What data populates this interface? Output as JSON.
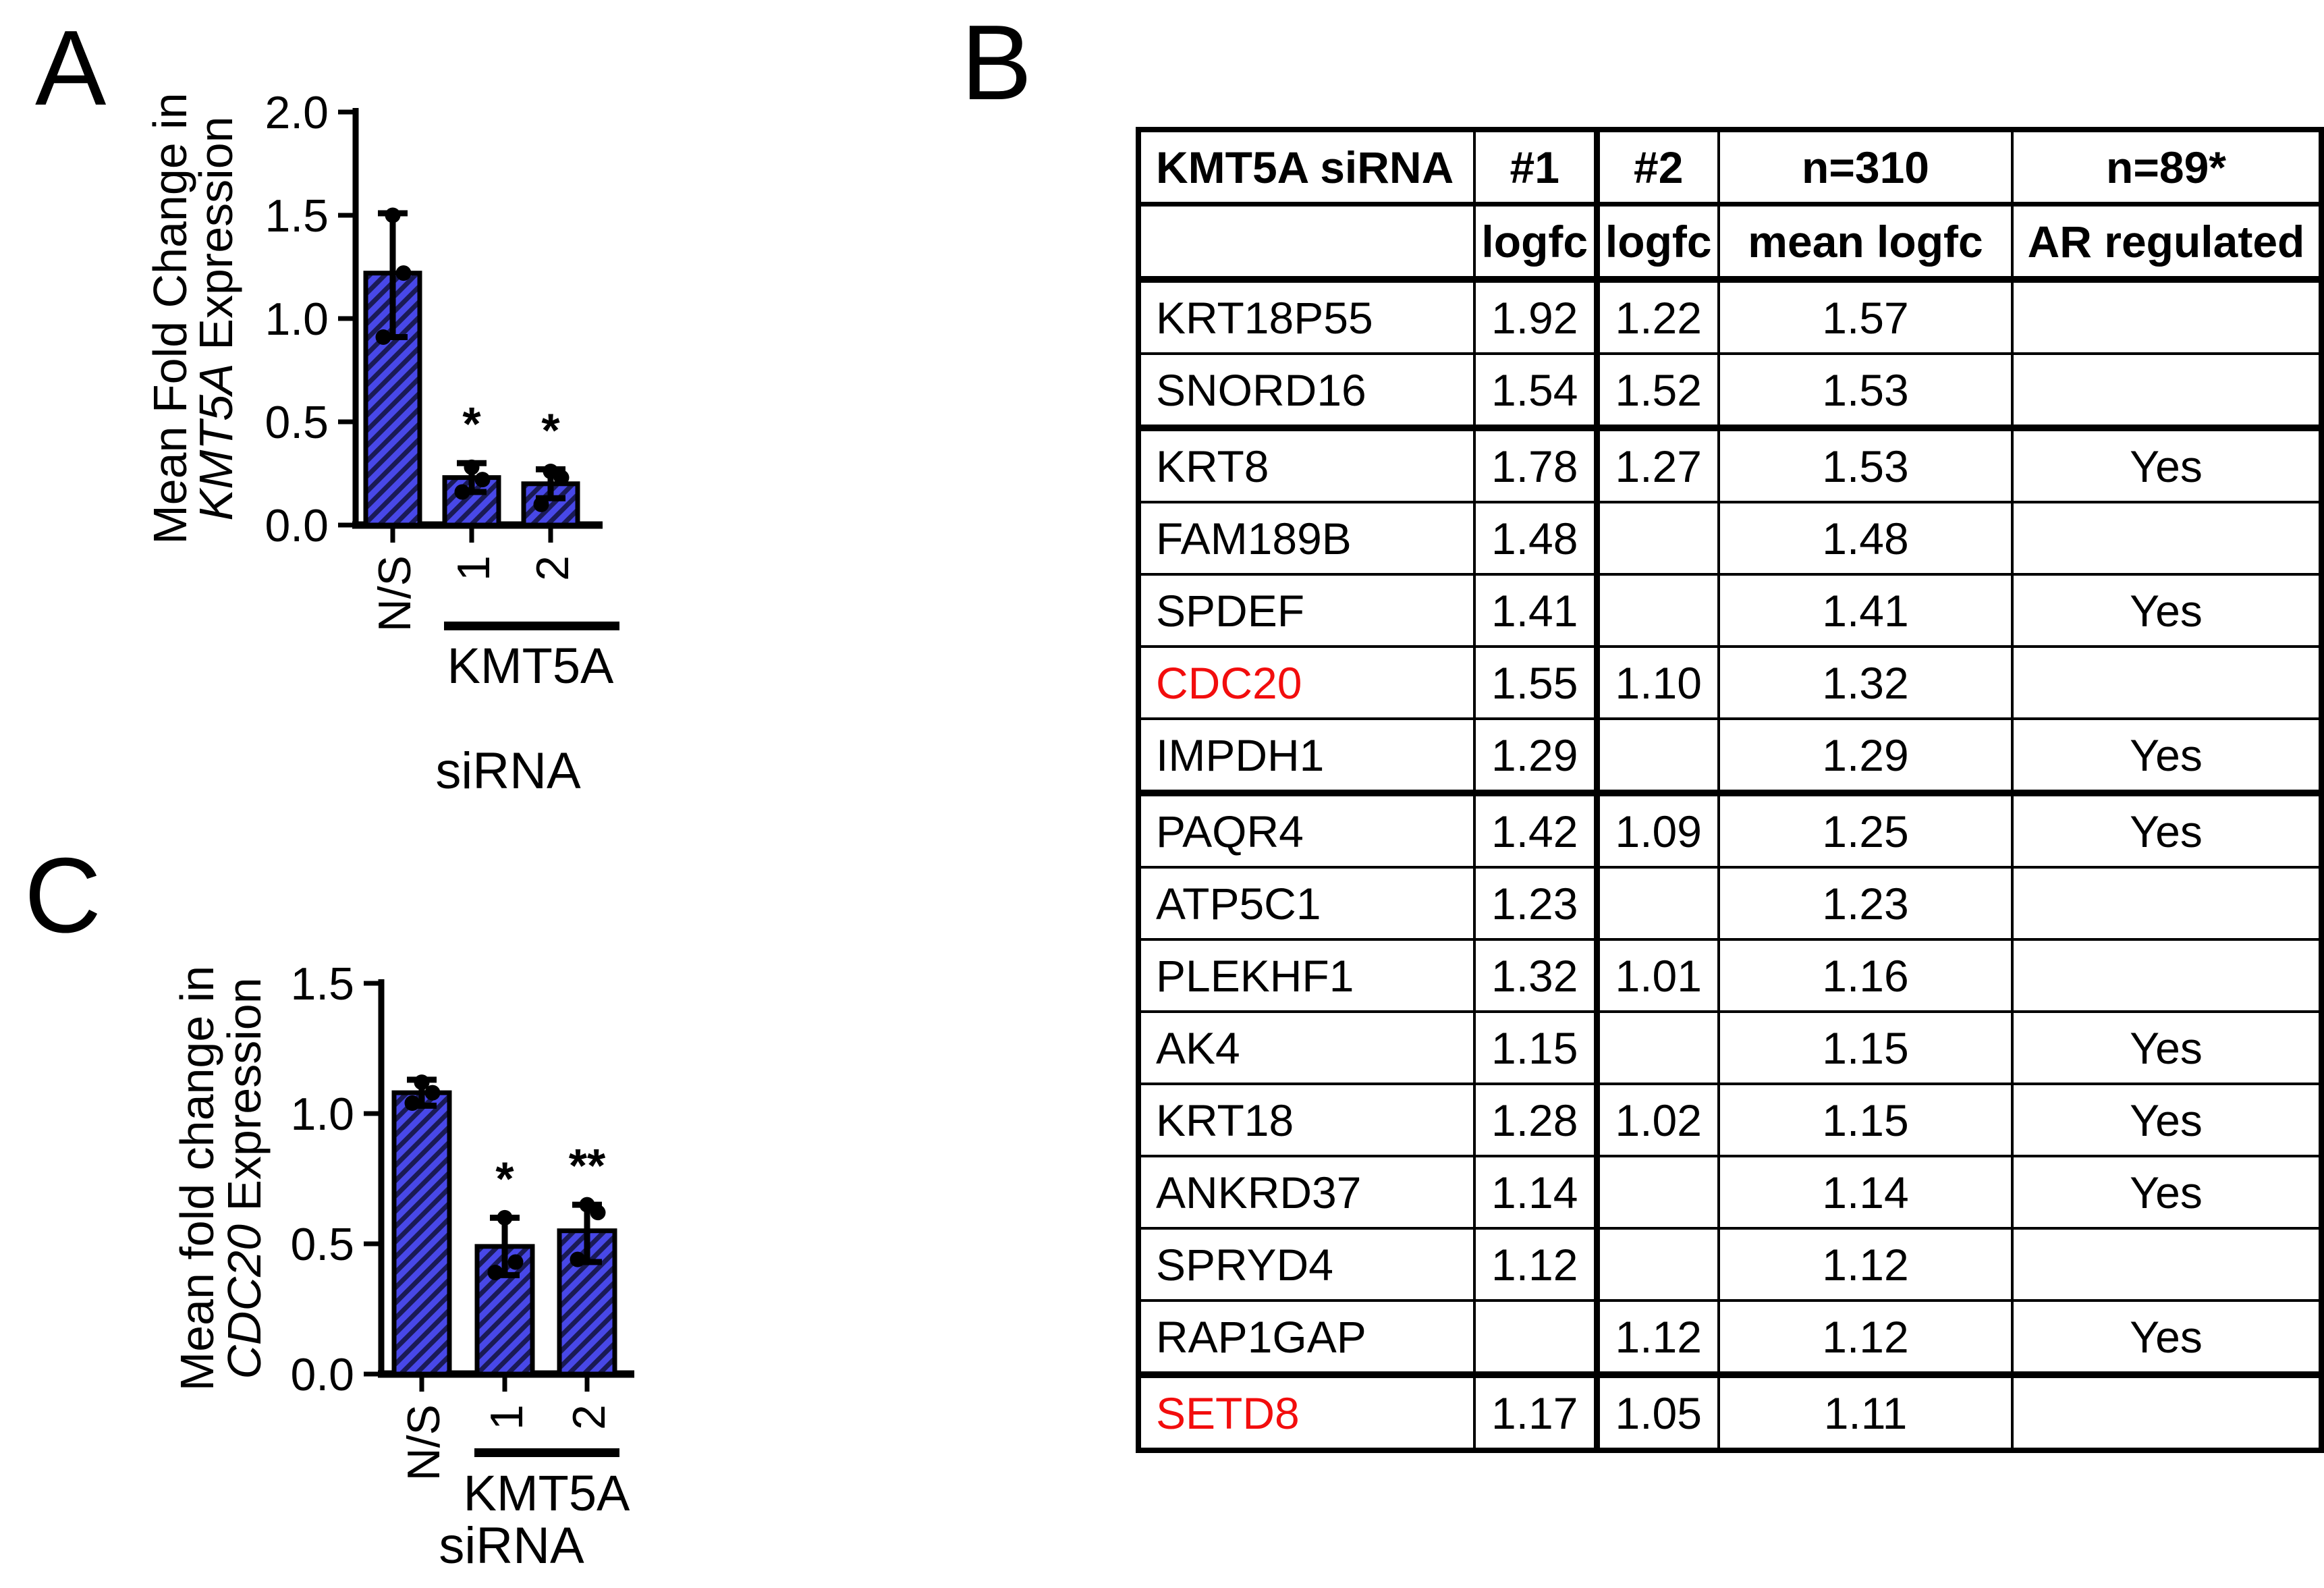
{
  "panel_labels": {
    "a": "A",
    "b": "B",
    "c": "C"
  },
  "colors": {
    "bar_fill": "#4848E8",
    "bar_hatch": "#1A1A55",
    "outline": "#000000",
    "red_text": "#F20D0D"
  },
  "chart_data": [
    {
      "id": "kmt5a",
      "panel": "A",
      "type": "bar",
      "title": "",
      "ylabel_line1": "Mean Fold Change in",
      "ylabel_gene": "KMT5A",
      "ylabel_suffix": " Expression",
      "xlabel": "siRNA",
      "group_label": "KMT5A",
      "categories": [
        "N/S",
        "1",
        "2"
      ],
      "values": [
        1.22,
        0.23,
        0.2
      ],
      "error_low": [
        0.91,
        0.16,
        0.13
      ],
      "error_high": [
        1.51,
        0.3,
        0.27
      ],
      "points": [
        [
          1.5,
          1.22,
          0.91
        ],
        [
          0.28,
          0.22,
          0.16
        ],
        [
          0.26,
          0.23,
          0.1
        ]
      ],
      "significance": [
        "",
        "*",
        "*"
      ],
      "ylim": [
        0,
        2.0
      ],
      "yticks": [
        "0.0",
        "0.5",
        "1.0",
        "1.5",
        "2.0"
      ],
      "grid": false,
      "legend": null
    },
    {
      "id": "cdc20",
      "panel": "C",
      "type": "bar",
      "title": "",
      "ylabel_line1": "Mean fold change in",
      "ylabel_gene": "CDC20",
      "ylabel_suffix": " Expression",
      "xlabel": "siRNA",
      "group_label": "KMT5A",
      "categories": [
        "N/S",
        "1",
        "2"
      ],
      "values": [
        1.08,
        0.49,
        0.55
      ],
      "error_low": [
        1.03,
        0.38,
        0.43
      ],
      "error_high": [
        1.13,
        0.6,
        0.65
      ],
      "points": [
        [
          1.12,
          1.08,
          1.04
        ],
        [
          0.6,
          0.43,
          0.39
        ],
        [
          0.65,
          0.62,
          0.44
        ]
      ],
      "significance": [
        "",
        "*",
        "**"
      ],
      "ylim": [
        0,
        1.5
      ],
      "yticks": [
        "0.0",
        "0.5",
        "1.0",
        "1.5"
      ],
      "grid": false,
      "legend": null
    }
  ],
  "table": {
    "header_row1": [
      "KMT5A siRNA",
      "#1",
      "#2",
      "n=310",
      "n=89*"
    ],
    "header_row2": [
      "",
      "logfc",
      "logfc",
      "mean logfc",
      "AR regulated"
    ],
    "rows": [
      {
        "gene": "KRT18P55",
        "logfc1": "1.92",
        "logfc2": "1.22",
        "mean": "1.57",
        "ar": "",
        "red": false,
        "thick_top": false
      },
      {
        "gene": "SNORD16",
        "logfc1": "1.54",
        "logfc2": "1.52",
        "mean": "1.53",
        "ar": "",
        "red": false,
        "thick_top": false
      },
      {
        "gene": "KRT8",
        "logfc1": "1.78",
        "logfc2": "1.27",
        "mean": "1.53",
        "ar": "Yes",
        "red": false,
        "thick_top": true
      },
      {
        "gene": "FAM189B",
        "logfc1": "1.48",
        "logfc2": "",
        "mean": "1.48",
        "ar": "",
        "red": false,
        "thick_top": false
      },
      {
        "gene": "SPDEF",
        "logfc1": "1.41",
        "logfc2": "",
        "mean": "1.41",
        "ar": "Yes",
        "red": false,
        "thick_top": false
      },
      {
        "gene": "CDC20",
        "logfc1": "1.55",
        "logfc2": "1.10",
        "mean": "1.32",
        "ar": "",
        "red": true,
        "thick_top": false
      },
      {
        "gene": "IMPDH1",
        "logfc1": "1.29",
        "logfc2": "",
        "mean": "1.29",
        "ar": "Yes",
        "red": false,
        "thick_top": false
      },
      {
        "gene": "PAQR4",
        "logfc1": "1.42",
        "logfc2": "1.09",
        "mean": "1.25",
        "ar": "Yes",
        "red": false,
        "thick_top": true
      },
      {
        "gene": "ATP5C1",
        "logfc1": "1.23",
        "logfc2": "",
        "mean": "1.23",
        "ar": "",
        "red": false,
        "thick_top": false
      },
      {
        "gene": "PLEKHF1",
        "logfc1": "1.32",
        "logfc2": "1.01",
        "mean": "1.16",
        "ar": "",
        "red": false,
        "thick_top": false
      },
      {
        "gene": "AK4",
        "logfc1": "1.15",
        "logfc2": "",
        "mean": "1.15",
        "ar": "Yes",
        "red": false,
        "thick_top": false
      },
      {
        "gene": "KRT18",
        "logfc1": "1.28",
        "logfc2": "1.02",
        "mean": "1.15",
        "ar": "Yes",
        "red": false,
        "thick_top": false
      },
      {
        "gene": "ANKRD37",
        "logfc1": "1.14",
        "logfc2": "",
        "mean": "1.14",
        "ar": "Yes",
        "red": false,
        "thick_top": false
      },
      {
        "gene": "SPRYD4",
        "logfc1": "1.12",
        "logfc2": "",
        "mean": "1.12",
        "ar": "",
        "red": false,
        "thick_top": false
      },
      {
        "gene": "RAP1GAP",
        "logfc1": "",
        "logfc2": "1.12",
        "mean": "1.12",
        "ar": "Yes",
        "red": false,
        "thick_top": false
      },
      {
        "gene": "SETD8",
        "logfc1": "1.17",
        "logfc2": "1.05",
        "mean": "1.11",
        "ar": "",
        "red": true,
        "thick_top": true
      }
    ]
  }
}
